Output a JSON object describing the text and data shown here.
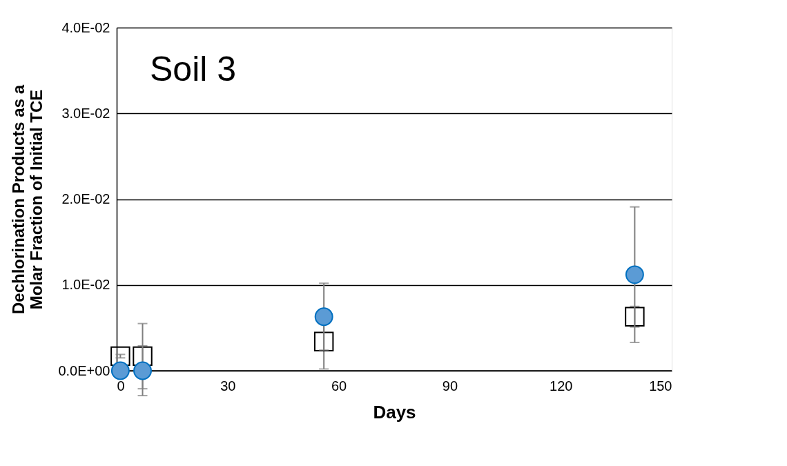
{
  "chart_data": {
    "type": "scatter",
    "title": "Soil 3",
    "xlabel": "Days",
    "ylabel": "Dechlorination Products as a Molar Fraction of Initial TCE",
    "x": [
      1,
      7,
      56,
      140
    ],
    "series": [
      {
        "color": "#000000",
        "marker": "square",
        "values": [
          0.0017,
          0.0017,
          0.0034,
          0.0063
        ],
        "errors": [
          0.0002,
          0.0038,
          0.0032,
          0.0012
        ]
      },
      {
        "color": "#5b9bd5",
        "marker": "circle",
        "values": [
          0.0,
          0.0,
          0.0063,
          0.0112
        ],
        "errors": [
          null,
          0.0029,
          0.0039,
          0.0079
        ]
      }
    ],
    "xlim": [
      0,
      150
    ],
    "xticks": [
      0,
      30,
      60,
      90,
      120,
      150
    ],
    "ylim": [
      0,
      0.04
    ],
    "yticks": [
      {
        "value": 0,
        "label": "0.0E+00"
      },
      {
        "value": 0.01,
        "label": "1.0E-02"
      },
      {
        "value": 0.02,
        "label": "2.0E-02"
      },
      {
        "value": 0.03,
        "label": "3.0E-02"
      },
      {
        "value": 0.04,
        "label": "4.0E-02"
      }
    ],
    "grid": "y"
  }
}
